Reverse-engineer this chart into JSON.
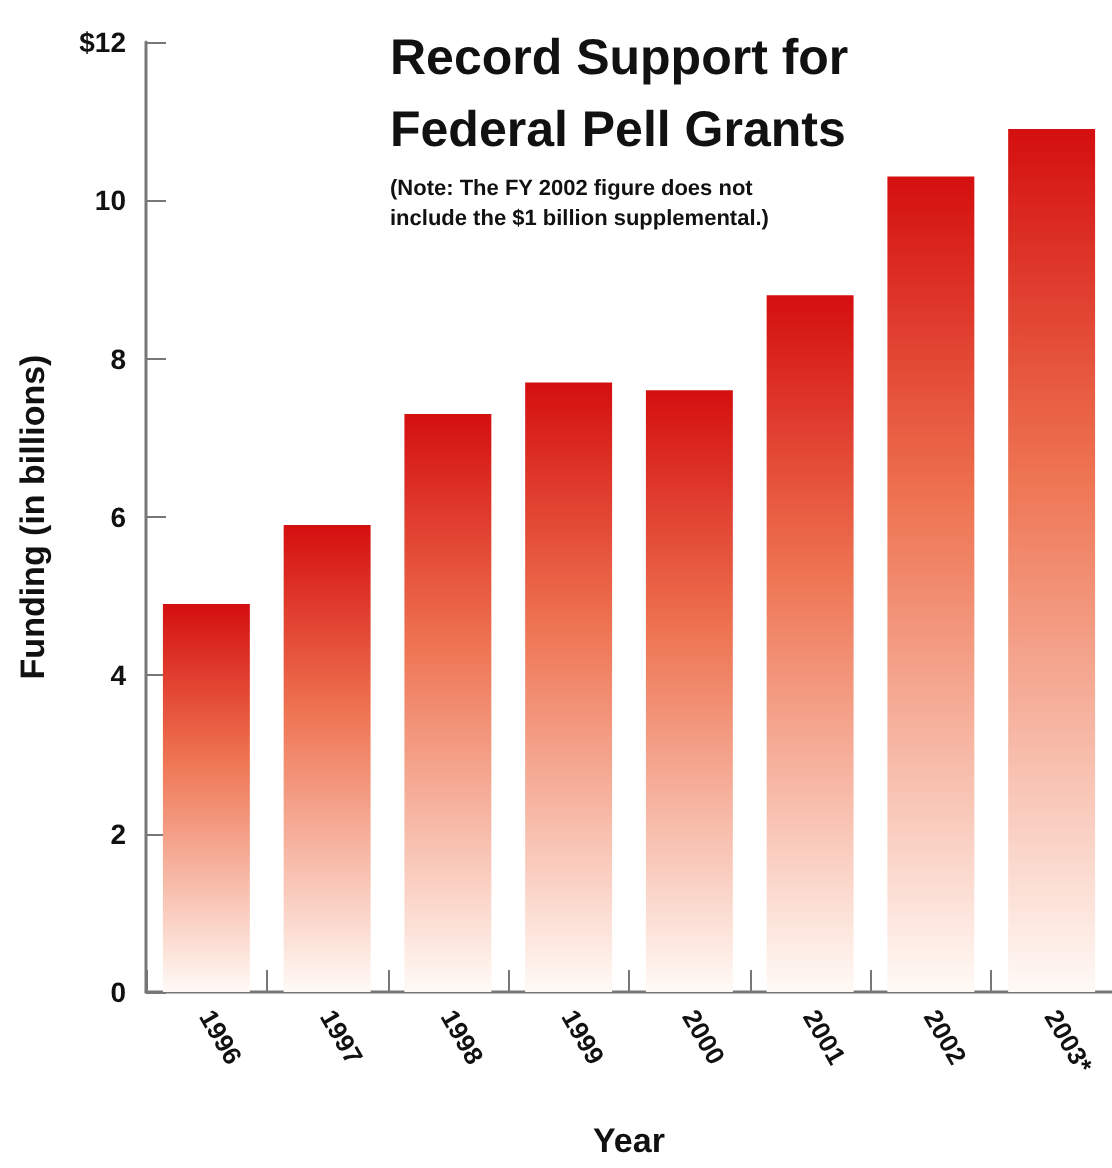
{
  "chart_data": {
    "type": "bar",
    "title": "Record Support for Federal Pell Grants",
    "subtitle": "(Note: The FY 2002 figure does not include the $1 billion supplemental.)",
    "xlabel": "Year",
    "ylabel": "Funding (in billions)",
    "categories": [
      "1996",
      "1997",
      "1998",
      "1999",
      "2000",
      "2001",
      "2002",
      "2003*"
    ],
    "values": [
      4.9,
      5.9,
      7.3,
      7.7,
      7.6,
      8.8,
      10.3,
      10.9
    ],
    "color": "#d40f0f",
    "ylim": [
      0,
      12
    ],
    "yticks": [
      0,
      2,
      4,
      6,
      8,
      10,
      {
        "value": 12,
        "label": "$12"
      }
    ],
    "grid": false
  }
}
